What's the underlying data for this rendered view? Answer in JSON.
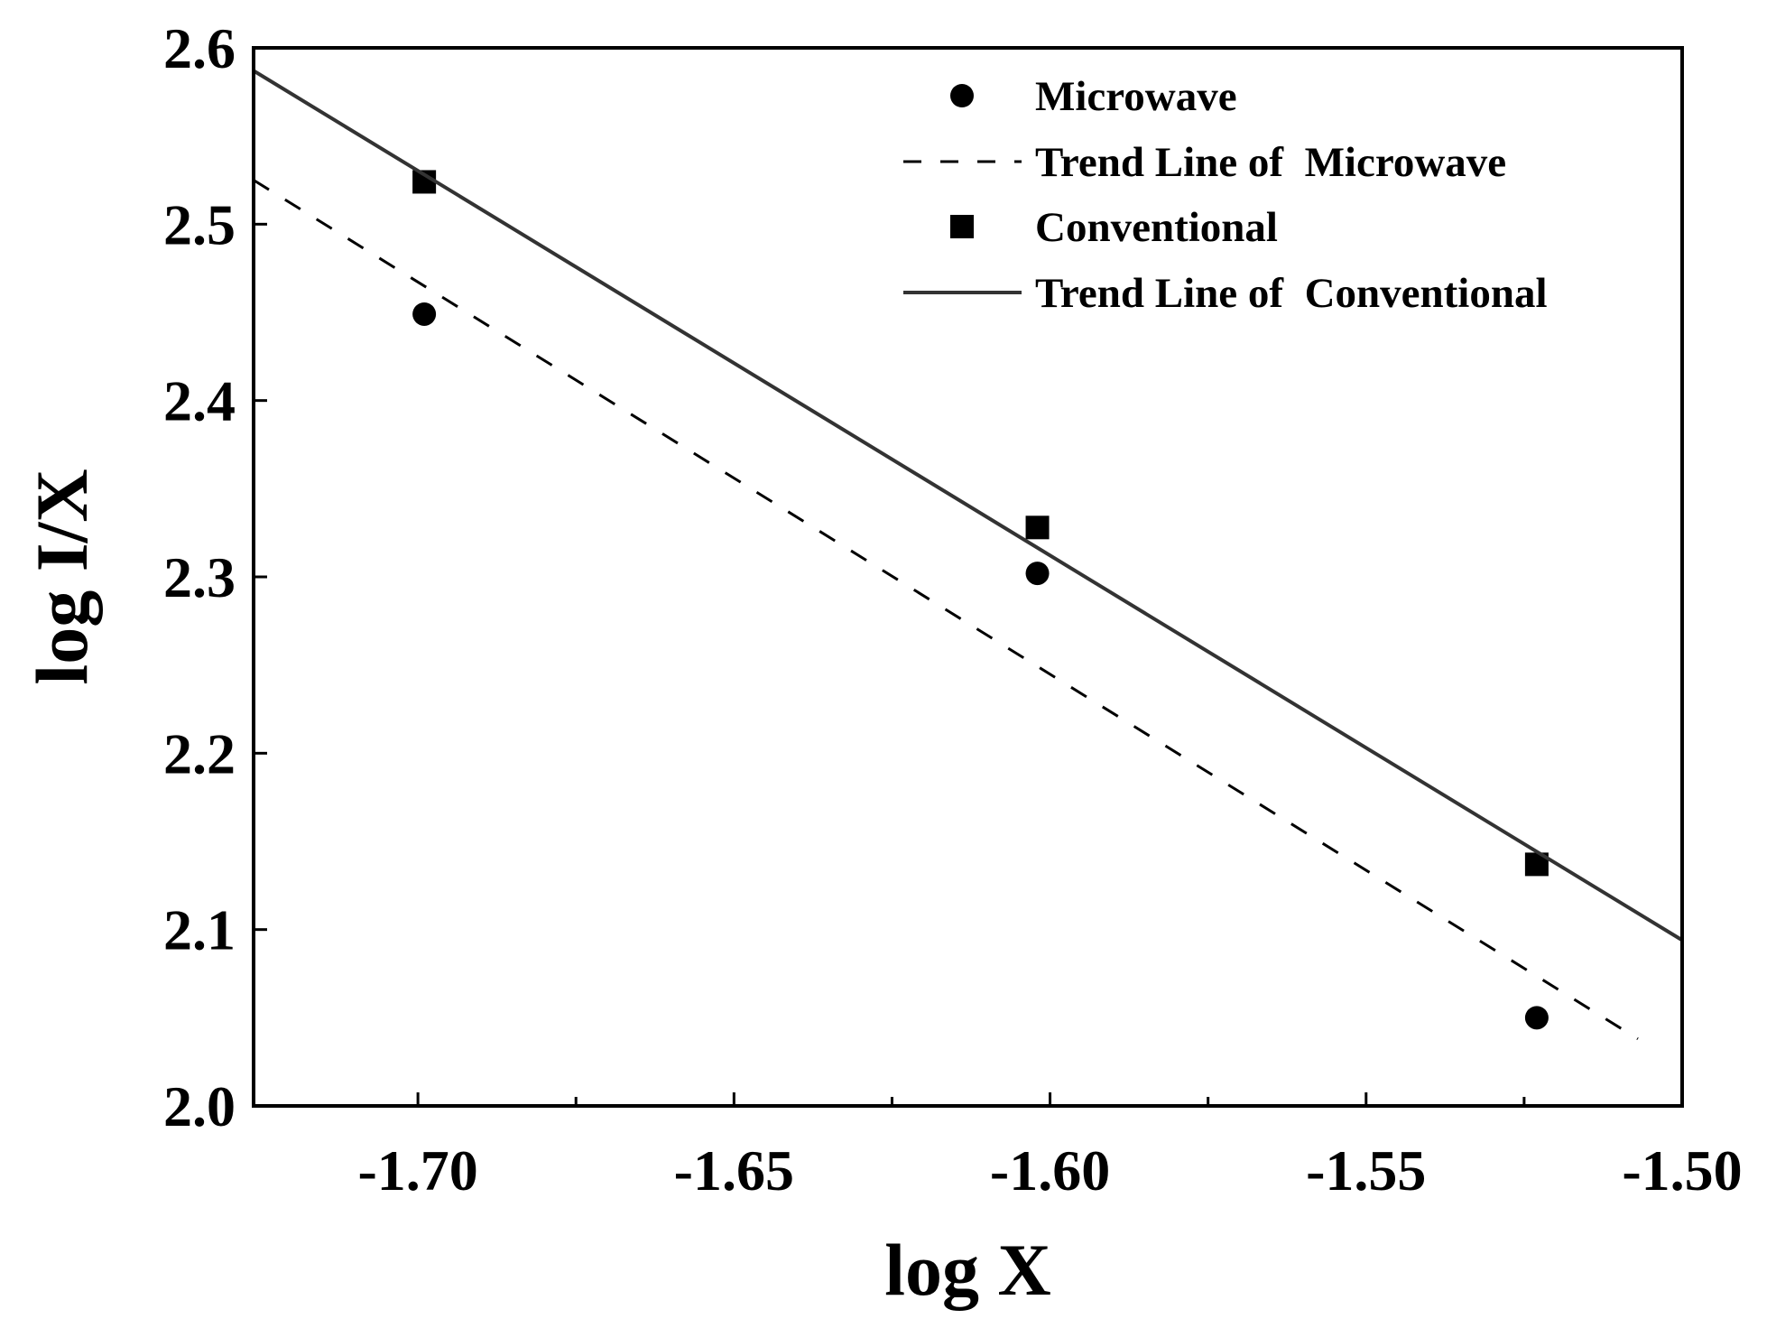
{
  "chart_data": {
    "type": "scatter",
    "title": "",
    "xlabel": "log X",
    "ylabel": "log I/X",
    "xlim": [
      -1.726,
      -1.5
    ],
    "ylim": [
      2.0,
      2.6
    ],
    "x_ticks": [
      -1.7,
      -1.65,
      -1.6,
      -1.55,
      -1.5
    ],
    "x_tick_labels": [
      "-1.70",
      "-1.65",
      "-1.60",
      "-1.55",
      "-1.50"
    ],
    "x_minor_ticks": [
      -1.675,
      -1.625,
      -1.575,
      -1.525
    ],
    "y_ticks": [
      2.0,
      2.1,
      2.2,
      2.3,
      2.4,
      2.5,
      2.6
    ],
    "y_tick_labels": [
      "2.0",
      "2.1",
      "2.2",
      "2.3",
      "2.4",
      "2.5",
      "2.6"
    ],
    "grid": false,
    "legend_position": "top-right",
    "series": [
      {
        "name": "Microwave",
        "kind": "points",
        "marker": "circle",
        "x": [
          -1.699,
          -1.602,
          -1.523
        ],
        "y": [
          2.449,
          2.302,
          2.05
        ]
      },
      {
        "name": "Trend Line of  Microwave",
        "kind": "line",
        "style": "dashed",
        "x": [
          -1.726,
          -1.507
        ],
        "y": [
          2.525,
          2.038
        ]
      },
      {
        "name": "Conventional",
        "kind": "points",
        "marker": "square",
        "x": [
          -1.699,
          -1.602,
          -1.523
        ],
        "y": [
          2.524,
          2.328,
          2.137
        ]
      },
      {
        "name": "Trend Line of  Conventional",
        "kind": "line",
        "style": "solid",
        "x": [
          -1.726,
          -1.5
        ],
        "y": [
          2.587,
          2.094
        ]
      }
    ]
  }
}
